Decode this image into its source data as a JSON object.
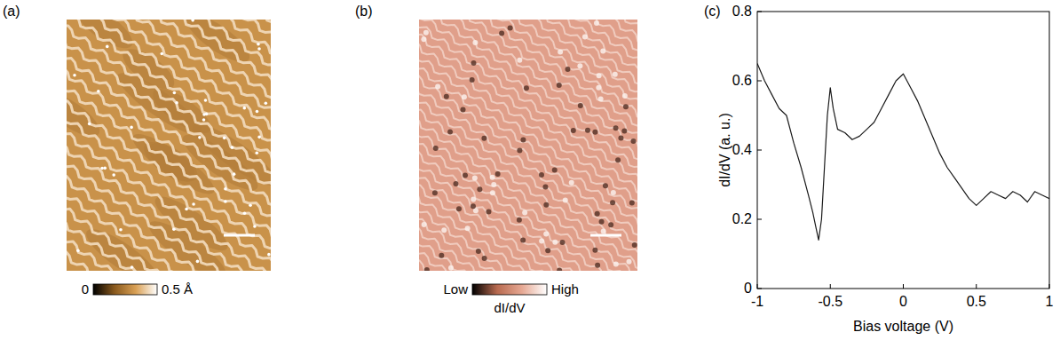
{
  "chart_data": [
    {
      "type": "image",
      "title": "(a)",
      "colorbar": {
        "range": [
          0,
          0.5
        ],
        "ticks": [
          0,
          {
            "value": 0.5,
            "label": "0.5 Å"
          }
        ],
        "colors": [
          "#000000",
          "#8a5a1e",
          "#d9a055",
          "#ffffff"
        ]
      }
    },
    {
      "type": "image",
      "title": "(b)",
      "colorbar": {
        "label": "dI/dV",
        "range": [
          0,
          1
        ],
        "ticks": [
          {
            "value": 0,
            "label": "Low"
          },
          {
            "value": 1,
            "label": "High"
          }
        ],
        "colors": [
          "#000000",
          "#b86a50",
          "#e6a893",
          "#ffffff"
        ]
      }
    },
    {
      "type": "line",
      "title": "(c)",
      "xlabel": "Bias voltage (V)",
      "ylabel": "dI/dV (a. u.)",
      "color": "#1a1a1a",
      "x": [
        -1,
        -0.95,
        -0.9,
        -0.85,
        -0.8,
        -0.75,
        -0.7,
        -0.65,
        -0.62,
        -0.6,
        -0.58,
        -0.56,
        -0.54,
        -0.52,
        -0.5,
        -0.48,
        -0.45,
        -0.4,
        -0.35,
        -0.3,
        -0.25,
        -0.2,
        -0.15,
        -0.1,
        -0.05,
        0,
        0.05,
        0.1,
        0.15,
        0.2,
        0.25,
        0.3,
        0.35,
        0.4,
        0.45,
        0.5,
        0.55,
        0.6,
        0.65,
        0.7,
        0.75,
        0.8,
        0.85,
        0.9,
        0.95,
        1
      ],
      "values": [
        0.65,
        0.6,
        0.56,
        0.52,
        0.5,
        0.42,
        0.35,
        0.27,
        0.22,
        0.18,
        0.14,
        0.2,
        0.35,
        0.5,
        0.58,
        0.52,
        0.46,
        0.45,
        0.43,
        0.44,
        0.46,
        0.48,
        0.52,
        0.56,
        0.6,
        0.62,
        0.58,
        0.54,
        0.49,
        0.44,
        0.39,
        0.35,
        0.32,
        0.29,
        0.26,
        0.24,
        0.26,
        0.28,
        0.27,
        0.26,
        0.28,
        0.27,
        0.25,
        0.28,
        0.27,
        0.26
      ],
      "xlim": [
        -1,
        1
      ],
      "ylim": [
        0,
        0.8
      ],
      "xticks": [
        -1,
        -0.5,
        0,
        0.5,
        1
      ],
      "yticks": [
        0,
        0.2,
        0.4,
        0.6,
        0.8
      ]
    }
  ]
}
